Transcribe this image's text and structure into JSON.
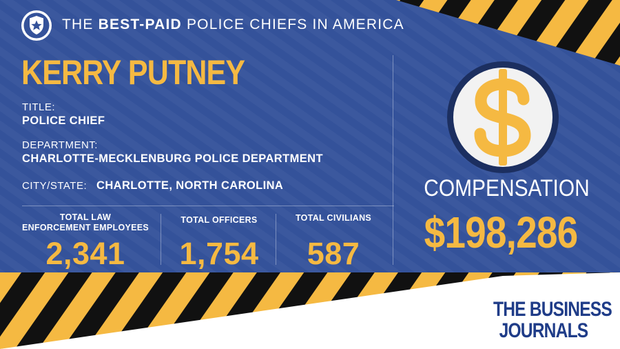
{
  "header": {
    "prefix": "THE",
    "bold": "BEST-PAID",
    "suffix": "POLICE CHIEFS IN AMERICA"
  },
  "person": {
    "name": "KERRY PUTNEY",
    "title_label": "TITLE:",
    "title_value": "POLICE CHIEF",
    "department_label": "DEPARTMENT:",
    "department_value": "CHARLOTTE-MECKLENBURG POLICE DEPARTMENT",
    "city_label": "CITY/STATE:",
    "city_value": "CHARLOTTE, NORTH CAROLINA"
  },
  "stats": [
    {
      "label_line1": "TOTAL LAW",
      "label_line2": "ENFORCEMENT EMPLOYEES",
      "value": "2,341"
    },
    {
      "label_line1": "TOTAL OFFICERS",
      "label_line2": "",
      "value": "1,754"
    },
    {
      "label_line1": "TOTAL CIVILIANS",
      "label_line2": "",
      "value": "587"
    }
  ],
  "compensation": {
    "label": "COMPENSATION",
    "value": "$198,286",
    "icon": "dollar-sign-icon"
  },
  "logo": {
    "line1": "THE BUSINESS",
    "line2": "JOURNALS"
  },
  "colors": {
    "panel_blue": "#34529a",
    "accent_yellow": "#f5b942",
    "stripe_black": "#111111",
    "logo_navy": "#1f3c88"
  }
}
